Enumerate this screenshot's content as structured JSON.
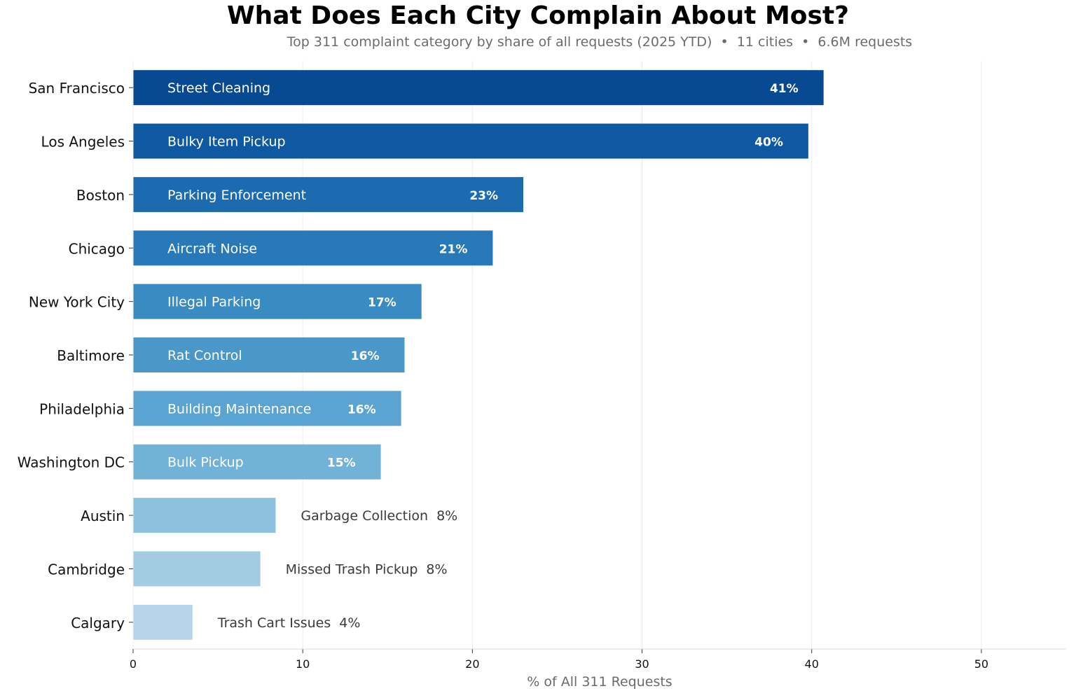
{
  "chart_data": {
    "type": "bar",
    "orientation": "horizontal",
    "title": "What Does Each City Complain About Most?",
    "subtitle": "Top 311 complaint category by share of all requests (2025 YTD)  •  11 cities  •  6.6M requests",
    "xlabel": "% of All 311 Requests",
    "ylabel": "",
    "xlim": [
      0,
      55
    ],
    "xticks": [
      0,
      10,
      20,
      30,
      40,
      50
    ],
    "grid": "vertical",
    "categories": [
      "San Francisco",
      "Los Angeles",
      "Boston",
      "Chicago",
      "New York City",
      "Baltimore",
      "Philadelphia",
      "Washington DC",
      "Austin",
      "Cambridge",
      "Calgary"
    ],
    "values": [
      40.7,
      39.8,
      23.0,
      21.2,
      17.0,
      16.0,
      15.8,
      14.6,
      8.4,
      7.5,
      3.5
    ],
    "top_category": [
      "Street Cleaning",
      "Bulky Item Pickup",
      "Parking Enforcement",
      "Aircraft Noise",
      "Illegal Parking",
      "Rat Control",
      "Building Maintenance",
      "Bulk Pickup",
      "Garbage Collection",
      "Missed Trash Pickup",
      "Trash Cart Issues"
    ],
    "value_labels": [
      "41%",
      "40%",
      "23%",
      "21%",
      "17%",
      "16%",
      "16%",
      "15%",
      "8%",
      "8%",
      "4%"
    ],
    "colors": [
      "#084a91",
      "#0f59a3",
      "#1c6ab0",
      "#2979b9",
      "#3a8bc2",
      "#4a98c9",
      "#5ba3d0",
      "#72b2d8",
      "#8dc0dd",
      "#a3cce3",
      "#b7d4ea"
    ]
  }
}
